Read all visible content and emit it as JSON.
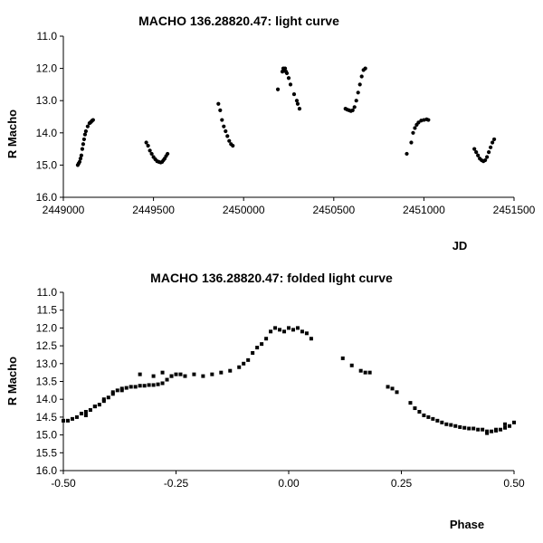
{
  "chart_data": [
    {
      "type": "scatter",
      "title": "MACHO 136.28820.47: light curve",
      "xlabel": "JD",
      "ylabel": "R Macho",
      "xlim": [
        2449000,
        2451500
      ],
      "ylim": [
        11.0,
        16.0
      ],
      "y_inverted": true,
      "grid": false,
      "xticks": [
        "2449000",
        "2449500",
        "2450000",
        "2450500",
        "2451000",
        "2451500"
      ],
      "yticks": [
        "11.0",
        "12.0",
        "13.0",
        "14.0",
        "15.0",
        "16.0"
      ],
      "series": [
        {
          "x": [
            2449080,
            2449085,
            2449090,
            2449095,
            2449100,
            2449105,
            2449110,
            2449115,
            2449120,
            2449125,
            2449135,
            2449145,
            2449150,
            2449155,
            2449160,
            2449165,
            2449460,
            2449470,
            2449480,
            2449490,
            2449500,
            2449510,
            2449520,
            2449530,
            2449540,
            2449548,
            2449555,
            2449562,
            2449570,
            2449578,
            2449860,
            2449870,
            2449880,
            2449890,
            2449900,
            2449910,
            2449920,
            2449930,
            2449940,
            2450190,
            2450215,
            2450220,
            2450225,
            2450230,
            2450235,
            2450240,
            2450250,
            2450260,
            2450280,
            2450295,
            2450300,
            2450310,
            2450565,
            2450575,
            2450585,
            2450595,
            2450605,
            2450615,
            2450625,
            2450635,
            2450645,
            2450655,
            2450665,
            2450675,
            2450905,
            2450930,
            2450940,
            2450950,
            2450960,
            2450970,
            2450985,
            2451000,
            2451015,
            2451025,
            2451280,
            2451290,
            2451300,
            2451310,
            2451320,
            2451330,
            2451340,
            2451350,
            2451360,
            2451370,
            2451380,
            2451390
          ],
          "y": [
            15.0,
            14.95,
            14.9,
            14.8,
            14.7,
            14.5,
            14.35,
            14.2,
            14.05,
            13.95,
            13.8,
            13.7,
            13.68,
            13.65,
            13.62,
            13.6,
            14.3,
            14.4,
            14.55,
            14.65,
            14.75,
            14.82,
            14.88,
            14.9,
            14.92,
            14.9,
            14.85,
            14.8,
            14.72,
            14.65,
            13.1,
            13.3,
            13.6,
            13.8,
            13.95,
            14.1,
            14.25,
            14.35,
            14.4,
            12.65,
            12.1,
            12.0,
            12.05,
            12.0,
            12.1,
            12.15,
            12.3,
            12.5,
            12.8,
            13.0,
            13.1,
            13.25,
            13.25,
            13.28,
            13.3,
            13.32,
            13.3,
            13.2,
            13.0,
            12.75,
            12.5,
            12.25,
            12.05,
            12.0,
            14.65,
            14.3,
            14.0,
            13.85,
            13.75,
            13.68,
            13.62,
            13.6,
            13.58,
            13.6,
            14.5,
            14.6,
            14.7,
            14.8,
            14.85,
            14.88,
            14.85,
            14.75,
            14.6,
            14.45,
            14.3,
            14.2
          ]
        }
      ]
    },
    {
      "type": "scatter",
      "title": "MACHO 136.28820.47: folded light curve",
      "xlabel": "Phase",
      "ylabel": "R Macho",
      "xlim": [
        -0.5,
        0.5
      ],
      "ylim": [
        11.0,
        16.0
      ],
      "y_inverted": true,
      "grid": false,
      "xticks": [
        "-0.50",
        "-0.25",
        "0.00",
        "0.25",
        "0.50"
      ],
      "yticks": [
        "11.0",
        "11.5",
        "12.0",
        "12.5",
        "13.0",
        "13.5",
        "14.0",
        "14.5",
        "15.0",
        "15.5",
        "16.0"
      ],
      "series": [
        {
          "x": [
            -0.5,
            -0.49,
            -0.48,
            -0.47,
            -0.46,
            -0.45,
            -0.44,
            -0.43,
            -0.42,
            -0.41,
            -0.4,
            -0.39,
            -0.38,
            -0.37,
            -0.36,
            -0.35,
            -0.34,
            -0.33,
            -0.32,
            -0.31,
            -0.3,
            -0.29,
            -0.28,
            -0.27,
            -0.26,
            -0.25,
            -0.24,
            -0.23,
            -0.21,
            -0.19,
            -0.17,
            -0.15,
            -0.13,
            -0.11,
            -0.1,
            -0.09,
            -0.08,
            -0.07,
            -0.06,
            -0.05,
            -0.04,
            -0.03,
            -0.02,
            -0.01,
            0.0,
            0.01,
            0.02,
            0.03,
            0.04,
            0.05,
            0.12,
            0.14,
            0.16,
            0.17,
            0.18,
            0.22,
            0.23,
            0.24,
            0.27,
            0.28,
            0.29,
            0.3,
            0.31,
            0.32,
            0.33,
            0.34,
            0.35,
            0.36,
            0.37,
            0.38,
            0.39,
            0.4,
            0.41,
            0.42,
            0.43,
            0.44,
            0.45,
            0.46,
            0.47,
            0.48,
            0.49,
            0.5,
            -0.45,
            -0.43,
            -0.41,
            -0.39,
            -0.37,
            -0.33,
            -0.3,
            -0.28,
            -0.26,
            0.44,
            0.46,
            0.48
          ],
          "y": [
            14.6,
            14.6,
            14.55,
            14.5,
            14.4,
            14.35,
            14.3,
            14.2,
            14.15,
            14.05,
            13.95,
            13.85,
            13.75,
            13.7,
            13.68,
            13.65,
            13.65,
            13.62,
            13.62,
            13.6,
            13.6,
            13.58,
            13.55,
            13.45,
            13.35,
            13.3,
            13.3,
            13.35,
            13.3,
            13.35,
            13.3,
            13.25,
            13.2,
            13.1,
            13.0,
            12.9,
            12.7,
            12.55,
            12.45,
            12.3,
            12.1,
            12.0,
            12.05,
            12.1,
            12.0,
            12.05,
            12.0,
            12.1,
            12.15,
            12.3,
            12.85,
            13.05,
            13.2,
            13.25,
            13.25,
            13.65,
            13.7,
            13.8,
            14.1,
            14.25,
            14.35,
            14.45,
            14.5,
            14.55,
            14.6,
            14.65,
            14.7,
            14.72,
            14.75,
            14.78,
            14.8,
            14.82,
            14.82,
            14.85,
            14.85,
            14.9,
            14.9,
            14.88,
            14.85,
            14.8,
            14.75,
            14.65,
            14.45,
            14.2,
            14.0,
            13.8,
            13.75,
            13.3,
            13.35,
            13.25,
            13.35,
            14.95,
            14.85,
            14.7
          ]
        }
      ]
    }
  ]
}
